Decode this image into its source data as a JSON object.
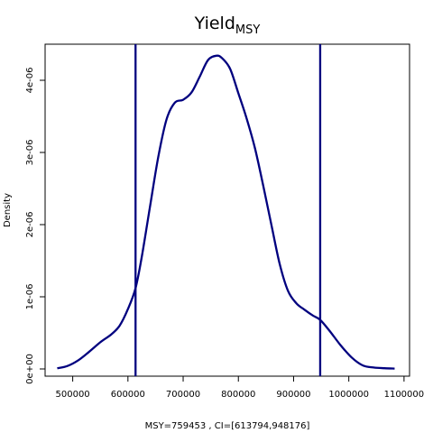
{
  "chart_data": {
    "type": "line",
    "title": "Yield",
    "title_subscript": "MSY",
    "xlabel": "MSY=759453 , CI=[613794,948176]",
    "ylabel": "Density",
    "xlim": [
      450000,
      1110000
    ],
    "ylim": [
      -1e-07,
      4.5e-06
    ],
    "x_ticks": [
      500000,
      600000,
      700000,
      800000,
      900000,
      1000000,
      1100000
    ],
    "x_tick_labels": [
      "500000",
      "600000",
      "700000",
      "800000",
      "900000",
      "1000000",
      "1100000"
    ],
    "y_ticks": [
      0,
      1e-06,
      2e-06,
      3e-06,
      4e-06
    ],
    "y_tick_labels": [
      "0e+00",
      "1e-06",
      "2e-06",
      "3e-06",
      "4e-06"
    ],
    "grid": false,
    "line_color": "#00007F",
    "vlines": [
      613794,
      948176
    ],
    "series": [
      {
        "name": "",
        "x": [
          472000,
          490000,
          510000,
          530000,
          550000,
          570000,
          585000,
          600000,
          613794,
          625000,
          640000,
          655000,
          670000,
          685000,
          700000,
          715000,
          730000,
          745000,
          760000,
          770000,
          785000,
          800000,
          815000,
          830000,
          845000,
          860000,
          875000,
          890000,
          905000,
          920000,
          935000,
          948176,
          965000,
          985000,
          1005000,
          1025000,
          1045000,
          1065000,
          1083000
        ],
        "y": [
          1e-08,
          4e-08,
          1.2e-07,
          2.4e-07,
          3.7e-07,
          4.8e-07,
          6e-07,
          8.3e-07,
          1.12e-06,
          1.55e-06,
          2.25e-06,
          2.94e-06,
          3.46e-06,
          3.69e-06,
          3.73e-06,
          3.83e-06,
          4.05e-06,
          4.28e-06,
          4.34e-06,
          4.31e-06,
          4.16e-06,
          3.82e-06,
          3.47e-06,
          3.06e-06,
          2.54e-06,
          1.99e-06,
          1.45e-06,
          1.08e-06,
          9.1e-07,
          8.2e-07,
          7.4e-07,
          6.8e-07,
          5.3e-07,
          3.3e-07,
          1.6e-07,
          5e-08,
          2e-08,
          1e-08,
          5e-09
        ]
      }
    ]
  }
}
